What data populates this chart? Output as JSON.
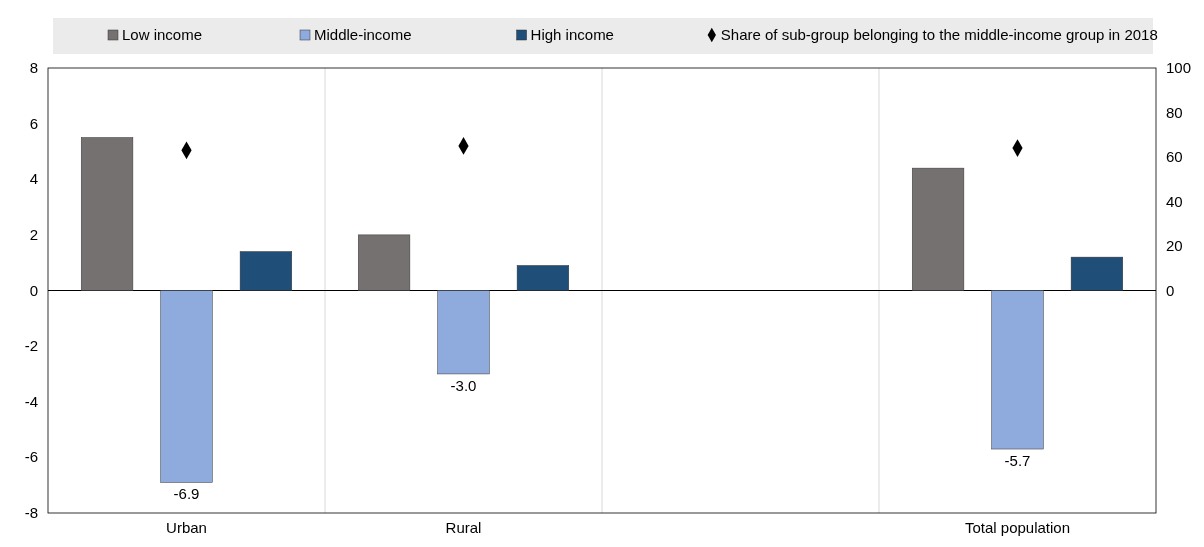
{
  "chart_data": {
    "type": "bar",
    "categories": [
      "Urban",
      "Rural",
      null,
      "Total population"
    ],
    "series": [
      {
        "name": "Low income",
        "color": "#767171",
        "values": [
          5.5,
          2.0,
          null,
          4.4
        ]
      },
      {
        "name": "Middle-income",
        "color": "#8faadc",
        "values": [
          -6.9,
          -3.0,
          null,
          -5.7
        ],
        "value_labels": [
          "-6.9",
          "-3.0",
          null,
          "-5.7"
        ]
      },
      {
        "name": "High income",
        "color": "#1f4e79",
        "values": [
          1.4,
          0.9,
          null,
          1.2
        ]
      },
      {
        "name": "Share of sub-group belonging to the middle-income group in 2018",
        "type": "scatter",
        "axis": "y2",
        "marker": "diamond",
        "color": "#000000",
        "values": [
          63,
          65,
          null,
          64
        ]
      }
    ],
    "ylim": [
      -8,
      8
    ],
    "yticks": [
      -8,
      -6,
      -4,
      -2,
      0,
      2,
      4,
      6,
      8
    ],
    "y2lim": [
      -100,
      100
    ],
    "y2ticks": [
      0,
      20,
      40,
      60,
      80,
      100
    ],
    "grid": "x",
    "legend": "top"
  }
}
